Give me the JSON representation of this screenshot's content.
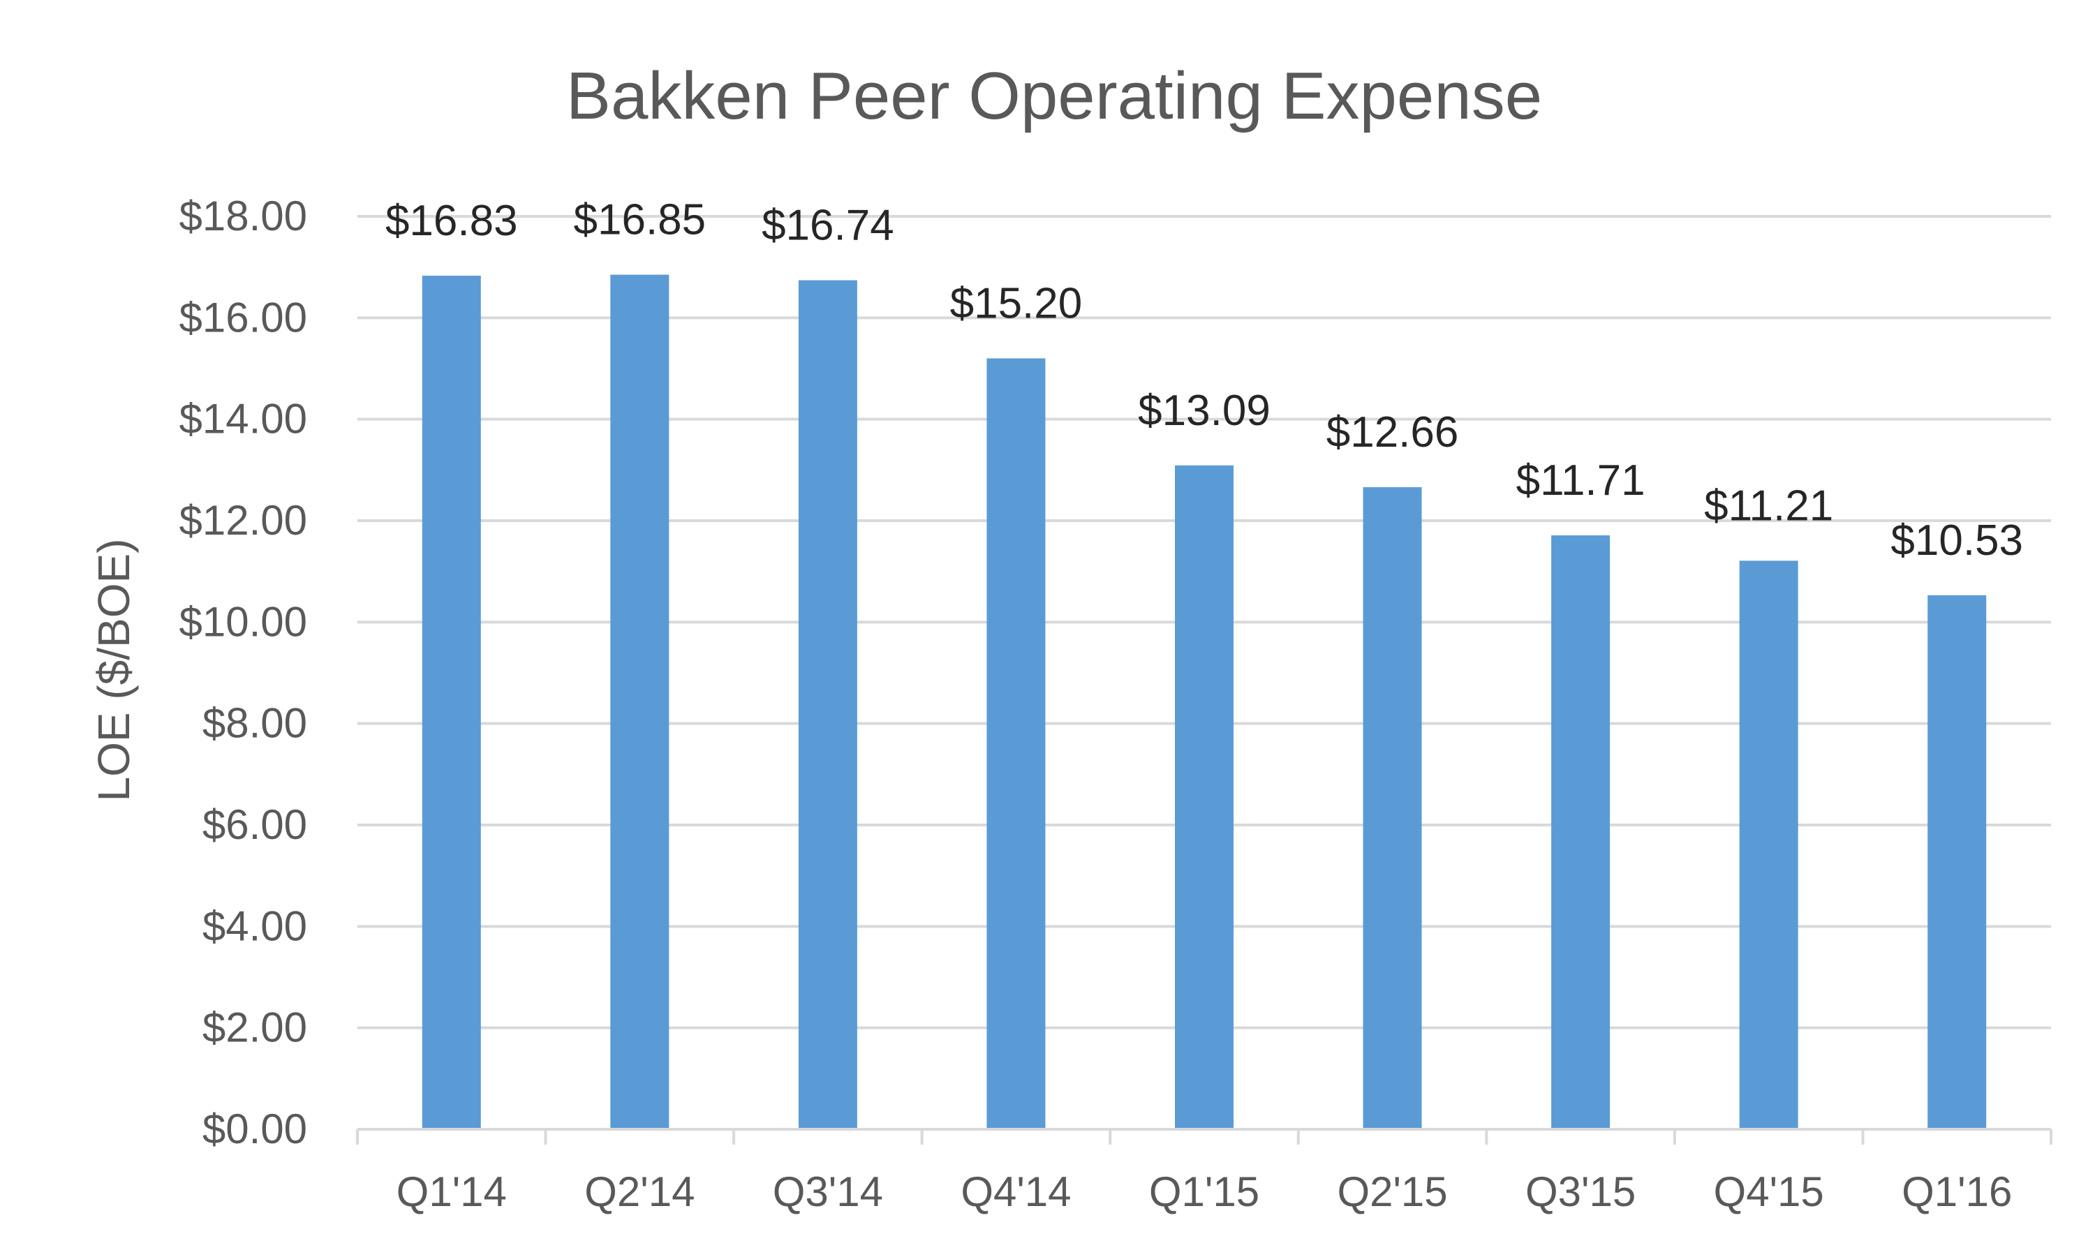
{
  "chart_data": {
    "type": "bar",
    "title": "Bakken Peer Operating Expense",
    "xlabel": "",
    "ylabel": "LOE ($/BOE)",
    "categories": [
      "Q1'14",
      "Q2'14",
      "Q3'14",
      "Q4'14",
      "Q1'15",
      "Q2'15",
      "Q3'15",
      "Q4'15",
      "Q1'16"
    ],
    "values": [
      16.83,
      16.85,
      16.74,
      15.2,
      13.09,
      12.66,
      11.71,
      11.21,
      10.53
    ],
    "data_labels": [
      "$16.83",
      "$16.85",
      "$16.74",
      "$15.20",
      "$13.09",
      "$12.66",
      "$11.71",
      "$11.21",
      "$10.53"
    ],
    "y_ticks": [
      0,
      2,
      4,
      6,
      8,
      10,
      12,
      14,
      16,
      18
    ],
    "y_tick_labels": [
      "$0.00",
      "$2.00",
      "$4.00",
      "$6.00",
      "$8.00",
      "$10.00",
      "$12.00",
      "$14.00",
      "$16.00",
      "$18.00"
    ],
    "ylim": [
      0,
      18
    ],
    "grid": true,
    "legend": "none",
    "colors": {
      "bar": "#5b9bd5"
    }
  }
}
